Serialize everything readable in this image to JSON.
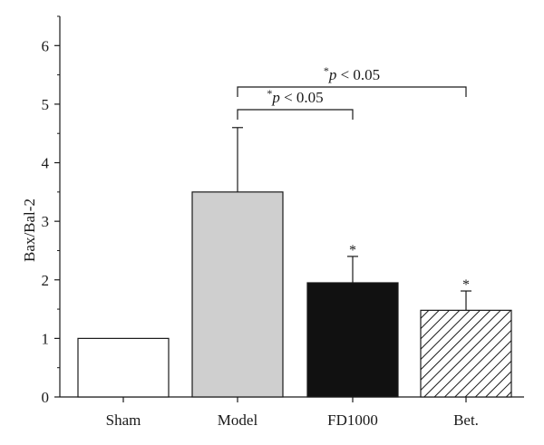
{
  "chart_data": {
    "type": "bar",
    "categories": [
      "Sham",
      "Model",
      "FD1000",
      "Bet."
    ],
    "values": [
      1.0,
      3.5,
      1.95,
      1.48
    ],
    "errors": [
      0,
      1.1,
      0.45,
      0.33
    ],
    "fills": [
      "white",
      "light-gray",
      "black",
      "diagonal-hatch"
    ],
    "significance_stars": [
      "",
      "",
      "*",
      "*"
    ],
    "ylabel": "Bax/Bal-2",
    "xlabel": "",
    "ylim": [
      0,
      6.5
    ],
    "yticks": [
      0,
      1,
      2,
      3,
      4,
      5,
      6
    ],
    "grid": false,
    "comparisons": [
      {
        "from": "Model",
        "to": "FD1000",
        "star": "*",
        "label": "p < 0.05"
      },
      {
        "from": "Model",
        "to": "Bet.",
        "star": "*",
        "label": "p < 0.05"
      }
    ]
  },
  "colors": {
    "axis": "#1a1a1a",
    "light-gray": "#cfcfcf",
    "black": "#111111",
    "white": "#ffffff"
  }
}
